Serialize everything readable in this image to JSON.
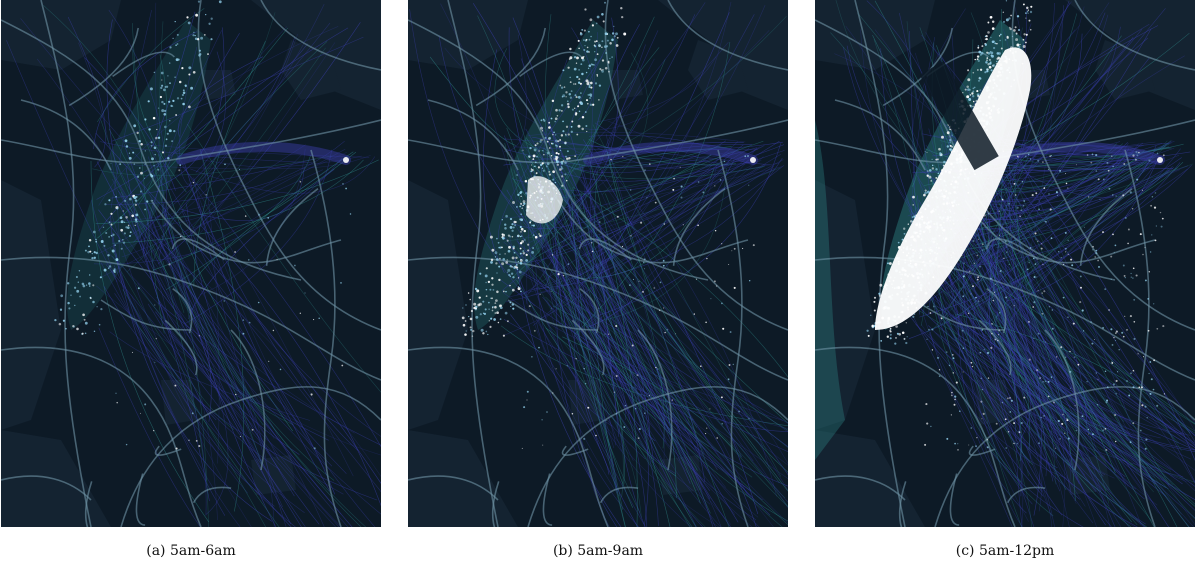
{
  "figure": {
    "panels": [
      {
        "id": "a",
        "caption": "(a) 5am-6am"
      },
      {
        "id": "b",
        "caption": "(b) 5am-9am"
      },
      {
        "id": "c",
        "caption": "(c) 5am-12pm"
      }
    ]
  },
  "colors": {
    "map_background": "#0d1a26",
    "land_dark": "#142331",
    "water": "#091420",
    "road": "#6f94a6",
    "trip_line": "#3b3fb0",
    "trip_line_teal": "#2f8a8a",
    "density_high": "#ffffff",
    "density_mid": "#8ecae6"
  }
}
